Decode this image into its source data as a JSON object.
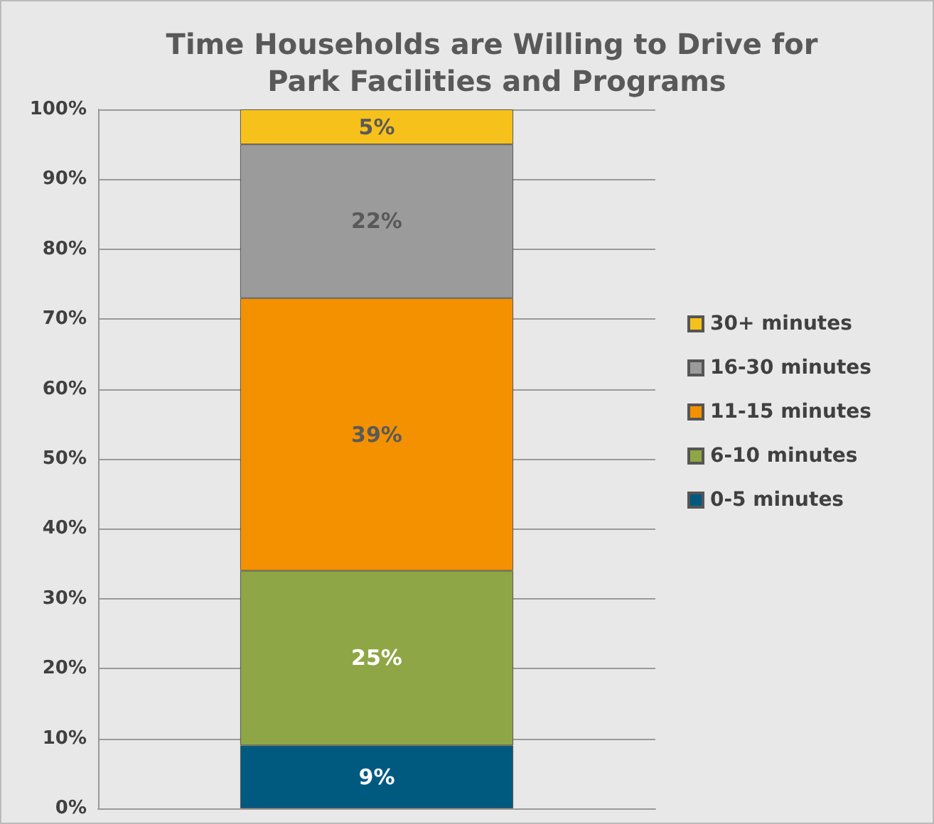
{
  "chart_data": {
    "type": "bar",
    "stacked": true,
    "title": "Time Households are Willing to Drive for Park Facilities and Programs",
    "categories": [
      null
    ],
    "series": [
      {
        "name": "0-5 minutes",
        "color": "#005a80",
        "values": [
          9
        ],
        "value_labels": [
          "9%"
        ]
      },
      {
        "name": "6-10 minutes",
        "color": "#8ea645",
        "values": [
          25
        ],
        "value_labels": [
          "25%"
        ]
      },
      {
        "name": "11-15 minutes",
        "color": "#f39100",
        "values": [
          39
        ],
        "value_labels": [
          "39%"
        ]
      },
      {
        "name": "16-30 minutes",
        "color": "#9b9b9c",
        "values": [
          22
        ],
        "value_labels": [
          "22%"
        ]
      },
      {
        "name": "30+ minutes",
        "color": "#f7c11b",
        "values": [
          5
        ],
        "value_labels": [
          "5%"
        ]
      }
    ],
    "ylim": [
      0,
      100
    ],
    "yticks": [
      {
        "value": 0,
        "label": "0%"
      },
      {
        "value": 10,
        "label": "10%"
      },
      {
        "value": 20,
        "label": "20%"
      },
      {
        "value": 30,
        "label": "30%"
      },
      {
        "value": 40,
        "label": "40%"
      },
      {
        "value": 50,
        "label": "50%"
      },
      {
        "value": 60,
        "label": "60%"
      },
      {
        "value": 70,
        "label": "70%"
      },
      {
        "value": 80,
        "label": "80%"
      },
      {
        "value": 90,
        "label": "90%"
      },
      {
        "value": 100,
        "label": "100%"
      }
    ],
    "grid": "y",
    "legend": "right"
  }
}
